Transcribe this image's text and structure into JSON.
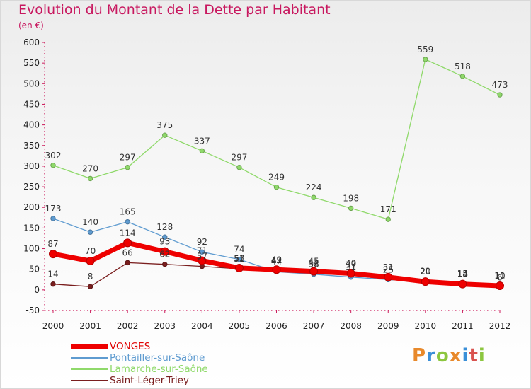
{
  "title": "Evolution du Montant de la Dette par Habitant",
  "subtitle": "(en €)",
  "logo": {
    "letters": [
      "P",
      "r",
      "o",
      "x",
      "i",
      "t",
      "i"
    ],
    "colors": [
      "#e8892b",
      "#3a8fd8",
      "#8cc63f",
      "#e8892b",
      "#3a8fd8",
      "#d9534f",
      "#8cc63f"
    ]
  },
  "chart_data": {
    "type": "line",
    "x": [
      "2000",
      "2001",
      "2002",
      "2003",
      "2004",
      "2005",
      "2006",
      "2007",
      "2008",
      "2009",
      "2010",
      "2011",
      "2012"
    ],
    "ylim": [
      -50,
      600
    ],
    "yticks": [
      -50,
      0,
      50,
      100,
      150,
      200,
      250,
      300,
      350,
      400,
      450,
      500,
      550,
      600
    ],
    "ytick_labels": [
      "-50",
      "0",
      "50",
      "100",
      "150",
      "200",
      "250",
      "300",
      "350",
      "400",
      "450",
      "500",
      "550",
      "600"
    ],
    "grid": false,
    "legend_position": "bottom-left",
    "series": [
      {
        "name": "Saint-Léger-Triey",
        "color": "#7a1e1e",
        "width": 1.3,
        "values": [
          14,
          8,
          66,
          62,
          57,
          51,
          47,
          42,
          37,
          25,
          20,
          15,
          11
        ],
        "labels": [
          "14",
          "8",
          "66",
          "62",
          "57",
          "51",
          "47",
          "42",
          "37",
          "25",
          "20",
          "15",
          "11"
        ]
      },
      {
        "name": "Lamarche-sur-Saône",
        "color": "#8fd96a",
        "width": 1.3,
        "values": [
          302,
          270,
          297,
          375,
          337,
          297,
          249,
          224,
          198,
          171,
          559,
          518,
          473
        ],
        "labels": [
          "302",
          "270",
          "297",
          "375",
          "337",
          "297",
          "249",
          "224",
          "198",
          "171",
          "559",
          "518",
          "473"
        ]
      },
      {
        "name": "Pontailler-sur-Saône",
        "color": "#5e9bd0",
        "width": 1.3,
        "values": [
          173,
          140,
          165,
          128,
          92,
          74,
          44,
          38,
          31,
          25,
          21,
          15,
          6
        ],
        "labels": [
          "173",
          "140",
          "165",
          "128",
          "92",
          "74",
          "44",
          "38",
          "31",
          "25",
          "21",
          "15",
          "6"
        ]
      },
      {
        "name": "VONGES",
        "color": "#ee0000",
        "width": 7,
        "values": [
          87,
          70,
          114,
          93,
          71,
          53,
          49,
          45,
          40,
          31,
          20,
          14,
          10
        ],
        "labels": [
          "87",
          "70",
          "114",
          "93",
          "71",
          "53",
          "49",
          "45",
          "40",
          "31",
          "20",
          "14",
          "10"
        ]
      }
    ],
    "legend_order": [
      "VONGES",
      "Pontailler-sur-Saône",
      "Lamarche-sur-Saône",
      "Saint-Léger-Triey"
    ]
  }
}
